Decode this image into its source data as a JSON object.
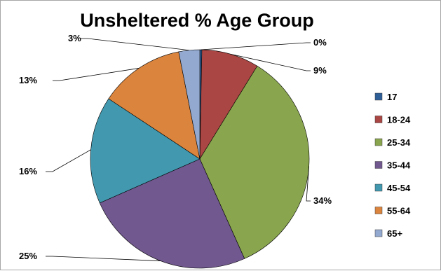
{
  "chart_data": {
    "type": "pie",
    "title": "Unsheltered % Age Group",
    "categories": [
      "17",
      "18-24",
      "25-34",
      "35-44",
      "45-54",
      "55-64",
      "65+"
    ],
    "values": [
      0.3,
      8.5,
      34.5,
      25.1,
      15.9,
      12.6,
      3.1
    ],
    "data_labels": [
      "0%",
      "9%",
      "34%",
      "25%",
      "16%",
      "13%",
      "3%"
    ],
    "colors": [
      "#2f5f97",
      "#aa4643",
      "#89a54e",
      "#71588f",
      "#4198af",
      "#db843d",
      "#93a9cf"
    ],
    "legend_position": "right"
  }
}
